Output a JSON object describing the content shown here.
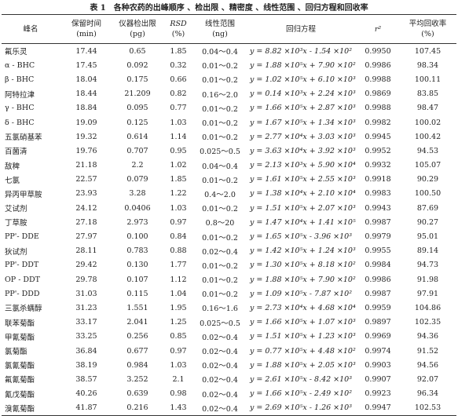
{
  "table": {
    "title": "表 1　各种农药的出峰顺序 、检出限 、精密度 、线性范围 、回归方程和回收率",
    "header": [
      [
        "峰名"
      ],
      [
        "保留时间",
        "(min)"
      ],
      [
        "仪器检出限",
        "(pg)"
      ],
      [
        "RSD",
        "(%)"
      ],
      [
        "线性范围",
        "(ng)"
      ],
      [
        "回归方程"
      ],
      [
        "r²"
      ],
      [
        "平均回收率",
        "(%)"
      ]
    ],
    "rows": [
      [
        "氟乐灵",
        "17.44",
        "0.65",
        "1.85",
        "0.04～0.4",
        "y = 8.82 ×10³x - 1.54 ×10²",
        "0.9950",
        "107.45"
      ],
      [
        "α - BHC",
        "17.45",
        "0.092",
        "0.32",
        "0.01～0.2",
        "y = 1.88 ×10⁵x + 7.90 ×10²",
        "0.9986",
        "98.34"
      ],
      [
        "β - BHC",
        "18.04",
        "0.175",
        "0.66",
        "0.01～0.2",
        "y = 1.02 ×10⁵x + 6.10 ×10³",
        "0.9988",
        "100.11"
      ],
      [
        "阿特拉津",
        "18.44",
        "21.209",
        "0.82",
        "0.16～2.0",
        "y = 0.14 ×10³x + 2.24 ×10³",
        "0.9869",
        "83.85"
      ],
      [
        "γ - BHC",
        "18.84",
        "0.095",
        "0.77",
        "0.01～0.2",
        "y = 1.66 ×10⁵x + 2.87 ×10³",
        "0.9988",
        "98.47"
      ],
      [
        "δ - BHC",
        "19.09",
        "0.125",
        "1.03",
        "0.01～0.2",
        "y = 1.67 ×10⁵x + 1.34 ×10³",
        "0.9982",
        "100.02"
      ],
      [
        "五氯硝基苯",
        "19.32",
        "0.614",
        "1.14",
        "0.01～0.2",
        "y = 2.77 ×10⁴x + 3.03 ×10³",
        "0.9945",
        "100.42"
      ],
      [
        "百菌清",
        "19.76",
        "0.707",
        "0.95",
        "0.025～0.5",
        "y = 3.63 ×10⁴x + 3.92 ×10³",
        "0.9952",
        "94.53"
      ],
      [
        "敌稗",
        "21.18",
        "2.2",
        "1.02",
        "0.04～0.4",
        "y = 2.13 ×10³x + 5.90 ×10⁴",
        "0.9932",
        "105.07"
      ],
      [
        "七氯",
        "22.57",
        "0.079",
        "1.85",
        "0.01～0.2",
        "y = 1.61 ×10⁵x + 2.55 ×10³",
        "0.9918",
        "90.29"
      ],
      [
        "异丙甲草胺",
        "23.93",
        "3.28",
        "1.22",
        "0.4～2.0",
        "y = 1.38 ×10⁴x + 2.10 ×10⁴",
        "0.9983",
        "100.50"
      ],
      [
        "艾试剂",
        "24.12",
        "0.0406",
        "1.03",
        "0.01～0.2",
        "y = 1.51 ×10⁵x + 2.07 ×10³",
        "0.9943",
        "87.69"
      ],
      [
        "丁草胺",
        "27.18",
        "2.973",
        "0.97",
        "0.8～20",
        "y = 1.47 ×10⁴x + 1.41 ×10⁵",
        "0.9987",
        "90.27"
      ],
      [
        "PP'- DDE",
        "27.97",
        "0.100",
        "0.84",
        "0.01～0.2",
        "y = 1.65 ×10⁵x - 3.96 ×10³",
        "0.9979",
        "95.01"
      ],
      [
        "狄试剂",
        "28.11",
        "0.783",
        "0.88",
        "0.02～0.4",
        "y = 1.42 ×10⁵x + 1.24 ×10³",
        "0.9955",
        "89.14"
      ],
      [
        "PP'- DDT",
        "29.42",
        "0.130",
        "1.77",
        "0.01～0.2",
        "y = 1.30 ×10⁵x + 8.18 ×10²",
        "0.9984",
        "94.73"
      ],
      [
        "OP - DDT",
        "29.78",
        "0.107",
        "1.12",
        "0.01～0.2",
        "y = 1.88 ×10⁵x + 7.90 ×10²",
        "0.9986",
        "91.98"
      ],
      [
        "PP'- DDD",
        "31.03",
        "0.115",
        "1.04",
        "0.01～0.2",
        "y = 1.09 ×10⁵x - 7.87 ×10²",
        "0.9987",
        "97.91"
      ],
      [
        "三氯杀螨醇",
        "31.23",
        "1.551",
        "1.95",
        "0.16～1.6",
        "y = 2.73 ×10⁴x + 4.68 ×10⁴",
        "0.9959",
        "104.86"
      ],
      [
        "联苯菊酯",
        "33.17",
        "2.041",
        "1.25",
        "0.025～0.5",
        "y = 1.66 ×10⁵x + 1.07 ×10³",
        "0.9897",
        "102.35"
      ],
      [
        "甲氰菊酯",
        "33.25",
        "0.256",
        "0.85",
        "0.02～0.4",
        "y = 1.51 ×10⁵x + 1.23 ×10³",
        "0.9969",
        "94.36"
      ],
      [
        "氯菊酯",
        "36.84",
        "0.677",
        "0.97",
        "0.02～0.4",
        "y = 0.77 ×10⁵x + 4.48 ×10²",
        "0.9974",
        "91.52"
      ],
      [
        "氯氰菊酯",
        "38.19",
        "0.984",
        "1.03",
        "0.02～0.4",
        "y = 1.88 ×10⁵x + 2.05 ×10³",
        "0.9903",
        "94.56"
      ],
      [
        "氟氰菊酯",
        "38.57",
        "3.252",
        "2.1",
        "0.02～0.4",
        "y = 2.61 ×10⁵x - 8.42 ×10³",
        "0.9907",
        "92.07"
      ],
      [
        "氰戊菊酯",
        "40.26",
        "0.639",
        "0.98",
        "0.02～0.4",
        "y = 1.66 ×10⁵x - 2.49 ×10²",
        "0.9923",
        "96.34"
      ],
      [
        "溴氰菊酯",
        "41.87",
        "0.216",
        "1.43",
        "0.02～0.4",
        "y = 2.69 ×10⁵x - 1.26 ×10³",
        "0.9947",
        "102.53"
      ]
    ]
  }
}
